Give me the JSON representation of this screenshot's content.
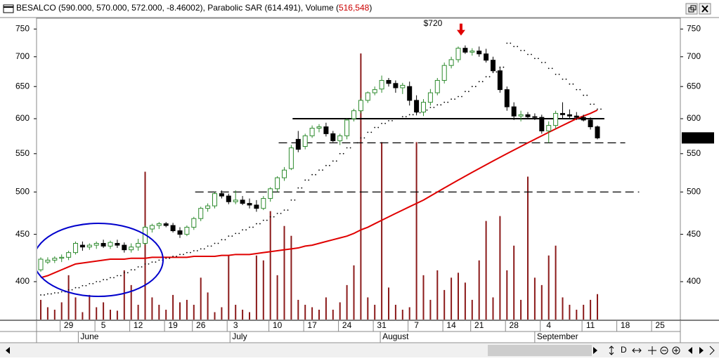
{
  "chart_data": {
    "type": "candlestick",
    "title": "BESALCO (590.000, 570.000, 572.000, -8.46002), Parabolic SAR (614.491), Volume (",
    "volume_label": "516,548",
    "title_end": ")",
    "annotation": {
      "label": "$720",
      "value": 720
    },
    "last_price_label": "572.000",
    "log_scale": true,
    "ylim": [
      364,
      769
    ],
    "yticks": [
      400,
      450,
      500,
      550,
      600,
      650,
      700,
      750
    ],
    "vlim": [
      0,
      6100000
    ],
    "up_color": "#2e8b2e",
    "down_color": "#000000",
    "volume_color": "#8b1a1a",
    "ma_color": "#e00000",
    "sar_color": "#000000",
    "hlines": [
      {
        "value": 600,
        "style": "solid"
      },
      {
        "value": 565,
        "style": "dashed"
      },
      {
        "value": 500,
        "style": "dashed"
      }
    ],
    "categories": [
      null,
      null,
      null,
      null,
      "29",
      null,
      null,
      null,
      null,
      "5",
      null,
      null,
      null,
      null,
      "12",
      null,
      null,
      null,
      null,
      "19",
      null,
      null,
      null,
      "26",
      null,
      null,
      null,
      null,
      "3",
      null,
      null,
      null,
      null,
      null,
      "10",
      null,
      null,
      null,
      null,
      "17",
      null,
      null,
      null,
      null,
      "24",
      null,
      null,
      null,
      null,
      "31",
      null,
      null,
      null,
      null,
      "7",
      null,
      null,
      null,
      null,
      "14",
      null,
      null,
      null,
      "21",
      null,
      null,
      null,
      null,
      "28",
      null,
      null,
      null,
      null,
      "4",
      null,
      null,
      null,
      null,
      null,
      "11",
      null
    ],
    "future_categories": [
      "18",
      "25"
    ],
    "months": [
      "June",
      "July",
      "August",
      "September"
    ],
    "toolbar_letter": "D",
    "open": [
      412,
      420,
      422,
      424,
      425,
      430,
      438,
      436,
      438,
      440,
      437,
      440,
      438,
      433,
      436,
      440,
      456,
      460,
      462,
      460,
      454,
      450,
      458,
      468,
      480,
      483,
      498,
      495,
      488,
      490,
      486,
      484,
      480,
      492,
      504,
      518,
      530,
      570,
      560,
      575,
      586,
      588,
      578,
      568,
      575,
      600,
      612,
      628,
      640,
      646,
      660,
      655,
      648,
      650,
      628,
      610,
      625,
      640,
      660,
      685,
      695,
      715,
      708,
      710,
      705,
      694,
      676,
      645,
      618,
      604,
      606,
      603,
      602,
      582,
      590,
      608,
      606,
      604,
      602,
      598,
      588
    ],
    "high": [
      425,
      425,
      426,
      428,
      432,
      442,
      442,
      440,
      442,
      444,
      443,
      444,
      441,
      440,
      445,
      460,
      462,
      464,
      464,
      463,
      458,
      460,
      470,
      482,
      486,
      500,
      502,
      498,
      502,
      495,
      492,
      490,
      495,
      506,
      520,
      532,
      562,
      582,
      578,
      590,
      592,
      594,
      582,
      578,
      600,
      615,
      632,
      642,
      650,
      668,
      664,
      660,
      656,
      658,
      636,
      630,
      646,
      664,
      690,
      700,
      718,
      720,
      715,
      718,
      714,
      700,
      682,
      650,
      625,
      612,
      610,
      608,
      606,
      596,
      612,
      625,
      614,
      610,
      606,
      602,
      590
    ],
    "low": [
      410,
      418,
      419,
      420,
      422,
      428,
      432,
      433,
      434,
      435,
      434,
      435,
      430,
      430,
      432,
      438,
      452,
      456,
      458,
      452,
      446,
      448,
      455,
      465,
      476,
      480,
      492,
      485,
      485,
      484,
      480,
      476,
      478,
      488,
      500,
      514,
      528,
      552,
      556,
      572,
      580,
      574,
      566,
      562,
      570,
      596,
      608,
      624,
      636,
      640,
      650,
      640,
      638,
      620,
      605,
      604,
      620,
      636,
      655,
      680,
      690,
      705,
      702,
      700,
      690,
      672,
      640,
      612,
      598,
      596,
      600,
      598,
      578,
      565,
      585,
      600,
      600,
      598,
      596,
      584,
      570
    ],
    "close": [
      423,
      422,
      424,
      425,
      430,
      440,
      436,
      438,
      440,
      437,
      441,
      438,
      433,
      436,
      440,
      458,
      460,
      462,
      460,
      454,
      450,
      458,
      468,
      480,
      483,
      498,
      495,
      488,
      490,
      486,
      484,
      480,
      492,
      504,
      518,
      528,
      558,
      556,
      575,
      586,
      588,
      578,
      568,
      575,
      598,
      612,
      628,
      640,
      645,
      660,
      655,
      648,
      652,
      628,
      610,
      625,
      640,
      660,
      685,
      695,
      715,
      708,
      710,
      705,
      694,
      676,
      645,
      618,
      604,
      606,
      603,
      602,
      582,
      590,
      608,
      606,
      604,
      602,
      598,
      588,
      572
    ],
    "volume": [
      400000,
      250000,
      200000,
      350000,
      900000,
      450000,
      150000,
      500000,
      250000,
      350000,
      200000,
      180000,
      1000000,
      700000,
      300000,
      3000000,
      450000,
      300000,
      200000,
      500000,
      350000,
      400000,
      300000,
      850000,
      550000,
      150000,
      250000,
      1300000,
      300000,
      200000,
      150000,
      1300000,
      1200000,
      2200000,
      900000,
      1900000,
      1700000,
      400000,
      300000,
      250000,
      200000,
      450000,
      200000,
      350000,
      700000,
      1100000,
      5400000,
      450000,
      300000,
      3600000,
      650000,
      300000,
      200000,
      250000,
      3600000,
      900000,
      400000,
      1000000,
      600000,
      850000,
      950000,
      750000,
      400000,
      1200000,
      2000000,
      450000,
      2100000,
      1000000,
      1500000,
      400000,
      2900000,
      850000,
      700000,
      1300000,
      1500000,
      450000,
      300000,
      200000,
      300000,
      400000,
      516548
    ],
    "ma": [
      404,
      406,
      409,
      412,
      415,
      418,
      419,
      420,
      421,
      422,
      423,
      423,
      423,
      424,
      424,
      424,
      425,
      425,
      425,
      425,
      425,
      425,
      426,
      426,
      426,
      426,
      427,
      427,
      428,
      428,
      428,
      429,
      430,
      431,
      432,
      433,
      434,
      435,
      437,
      438,
      440,
      442,
      444,
      446,
      448,
      451,
      455,
      458,
      462,
      466,
      470,
      474,
      478,
      482,
      486,
      490,
      495,
      500,
      505,
      510,
      515,
      520,
      525,
      530,
      535,
      540,
      545,
      550,
      555,
      560,
      565,
      570,
      575,
      580,
      585,
      590,
      595,
      600,
      604,
      608,
      613
    ],
    "sar": [
      387,
      388,
      389,
      390,
      392,
      394,
      396,
      398,
      400,
      402,
      404,
      406,
      409,
      412,
      415,
      418,
      420,
      422,
      424,
      426,
      428,
      430,
      432,
      434,
      437,
      440,
      444,
      448,
      451,
      455,
      458,
      462,
      466,
      470,
      474,
      478,
      490,
      505,
      515,
      522,
      528,
      534,
      540,
      550,
      558,
      565,
      572,
      580,
      587,
      593,
      597,
      600,
      603,
      606,
      609,
      613,
      617,
      621,
      625,
      630,
      634,
      642,
      650,
      658,
      666,
      674,
      682,
      724,
      718,
      711,
      704,
      697,
      690,
      680,
      670,
      662,
      654,
      645,
      636,
      622,
      614.491
    ]
  }
}
